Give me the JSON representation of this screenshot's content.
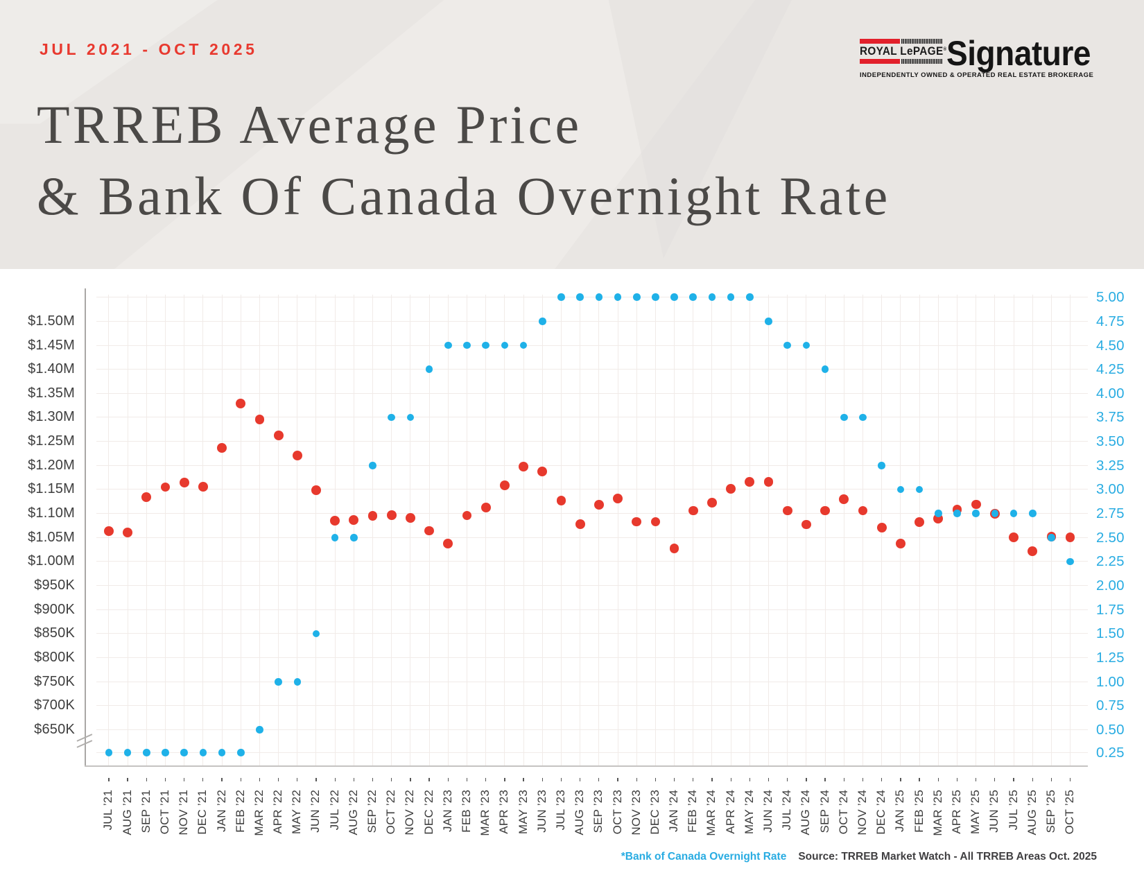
{
  "header": {
    "date_range": "JUL 2021 - OCT 2025",
    "title_line1": "TRREB Average Price",
    "title_line2": "& Bank Of Canada Overnight Rate"
  },
  "logo": {
    "brand": "ROYAL LePAGE",
    "registered_mark": "®",
    "name": "Signature",
    "tagline": "INDEPENDENTLY OWNED & OPERATED REAL ESTATE BROKERAGE"
  },
  "footer": {
    "note": "*Bank of Canada Overnight Rate",
    "source": "Source: TRREB Market Watch - All TRREB Areas Oct. 2025"
  },
  "colors": {
    "price_dot": "#e7392d",
    "rate_dot": "#1fb1e8",
    "rate_label": "#29ace2",
    "accent_red": "#e8392f",
    "header_bg": "#e9e6e3",
    "grid": "#f3eeeb",
    "text_dark": "#3e3e3e"
  },
  "chart_data": {
    "type": "scatter",
    "title": "TRREB Average Price & Bank Of Canada Overnight Rate",
    "x": [
      "JUL ’21",
      "AUG ’21",
      "SEP ’21",
      "OCT ’21",
      "NOV ’21",
      "DEC ’21",
      "JAN ’22",
      "FEB ’22",
      "MAR ’22",
      "APR ’22",
      "MAY ’22",
      "JUN ’22",
      "JUL ’22",
      "AUG ’22",
      "SEP ’22",
      "OCT ’22",
      "NOV ’22",
      "DEC ’22",
      "JAN ’23",
      "FEB ’23",
      "MAR ’23",
      "APR ’23",
      "MAY ’23",
      "JUN ’23",
      "JUL ’23",
      "AUG ’23",
      "SEP ’23",
      "OCT ’23",
      "NOV ’23",
      "DEC ’23",
      "JAN ’24",
      "FEB ’24",
      "MAR ’24",
      "APR ’24",
      "MAY ’24",
      "JUN ’24",
      "JUL ’24",
      "AUG ’24",
      "SEP ’24",
      "OCT ’24",
      "NOV ’24",
      "DEC ’24",
      "JAN ’25",
      "FEB ’25",
      "MAR ’25",
      "APR ’25",
      "MAY ’25",
      "JUN ’25",
      "JUL ’25",
      "AUG ’25",
      "SEP ’25",
      "OCT ’25"
    ],
    "series": [
      {
        "name": "TRREB Average Price",
        "color": "#e7392d",
        "unit": "CAD",
        "values": [
          1063000,
          1060000,
          1134000,
          1155000,
          1164000,
          1156000,
          1236000,
          1329000,
          1296000,
          1262000,
          1221000,
          1149000,
          1085000,
          1087000,
          1095000,
          1097000,
          1091000,
          1064000,
          1037000,
          1096000,
          1112000,
          1159000,
          1197000,
          1188000,
          1127000,
          1078000,
          1118000,
          1131000,
          1083000,
          1083000,
          1027000,
          1106000,
          1122000,
          1151000,
          1166000,
          1166000,
          1106000,
          1077000,
          1106000,
          1130000,
          1106000,
          1071000,
          1037000,
          1082000,
          1089000,
          1108000,
          1119000,
          1100000,
          1051000,
          1022000,
          1052000,
          1051000
        ]
      },
      {
        "name": "Bank of Canada Overnight Rate",
        "color": "#1fb1e8",
        "unit": "%",
        "values": [
          0.25,
          0.25,
          0.25,
          0.25,
          0.25,
          0.25,
          0.25,
          0.25,
          0.5,
          1.0,
          1.0,
          1.5,
          2.5,
          2.5,
          3.25,
          3.75,
          3.75,
          4.25,
          4.5,
          4.5,
          4.5,
          4.5,
          4.5,
          4.75,
          5.0,
          5.0,
          5.0,
          5.0,
          5.0,
          5.0,
          5.0,
          5.0,
          5.0,
          5.0,
          5.0,
          4.75,
          4.5,
          4.5,
          4.25,
          3.75,
          3.75,
          3.25,
          3.0,
          3.0,
          2.75,
          2.75,
          2.75,
          2.75,
          2.75,
          2.75,
          2.5,
          2.25
        ]
      }
    ],
    "left_axis": {
      "title": "",
      "tick_labels": [
        "$1.50M",
        "$1.45M",
        "$1.40M",
        "$1.35M",
        "$1.30M",
        "$1.25M",
        "$1.20M",
        "$1.15M",
        "$1.10M",
        "$1.05M",
        "$1.00M",
        "$950K",
        "$900K",
        "$850K",
        "$800K",
        "$750K",
        "$700K",
        "$650K"
      ],
      "min": 650000,
      "max": 1500000,
      "step": 50000,
      "axis_break": true
    },
    "right_axis": {
      "title": "",
      "tick_labels": [
        "5.00",
        "4.75",
        "4.50",
        "4.25",
        "4.00",
        "3.75",
        "3.50",
        "3.25",
        "3.00",
        "2.75",
        "2.50",
        "2.25",
        "2.00",
        "1.75",
        "1.50",
        "1.25",
        "1.00",
        "0.75",
        "0.50",
        "0.25"
      ],
      "min": 0.25,
      "max": 5.0,
      "step": 0.25
    },
    "grid": true,
    "legend_position": "none"
  }
}
